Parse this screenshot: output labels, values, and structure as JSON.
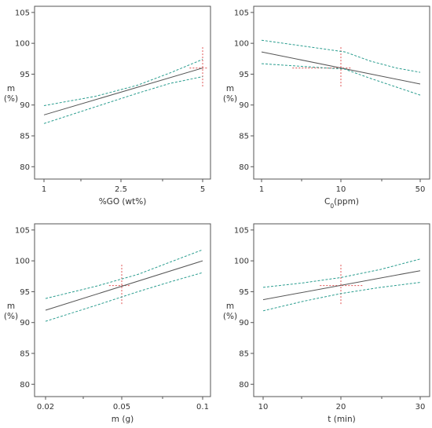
{
  "colors": {
    "fit_line": "#555555",
    "confidence_band": "#2a9d8f",
    "reference_cross": "#e05050",
    "frame": "#555555",
    "text": "#333333"
  },
  "chart_data": [
    {
      "type": "line",
      "xlabel": "%GO (wt%)",
      "ylabel_symbol": "m",
      "ylabel_unit": "(%)",
      "ylim": [
        78,
        106
      ],
      "yticks": [
        80,
        85,
        90,
        95,
        100,
        105
      ],
      "xlim": [
        1,
        5
      ],
      "xticks": [
        1,
        2.5,
        5
      ],
      "xtick_labels": [
        "1",
        "2.5",
        "5"
      ],
      "minor_xticks": [
        1.75,
        3.75
      ],
      "grid": false,
      "series": [
        {
          "role": "fit",
          "x": [
            1,
            5
          ],
          "y": [
            88.4,
            96.0
          ]
        },
        {
          "role": "upper",
          "x": [
            1,
            2,
            3,
            4,
            5
          ],
          "y": [
            89.9,
            91.4,
            93.2,
            95.2,
            97.4
          ]
        },
        {
          "role": "lower",
          "x": [
            1,
            2,
            3,
            4,
            5
          ],
          "y": [
            87.0,
            89.7,
            91.9,
            93.5,
            94.6
          ]
        }
      ],
      "reference_point": {
        "x": 5,
        "y": 96.0,
        "x_span": [
          4.6,
          5.15
        ],
        "y_span": [
          93.0,
          99.5
        ]
      }
    },
    {
      "type": "line",
      "xlabel": "C0(ppm)",
      "xlabel_main": "C",
      "xlabel_sub": "0",
      "xlabel_rest": "(ppm)",
      "ylabel_symbol": "m",
      "ylabel_unit": "(%)",
      "ylim": [
        78,
        106
      ],
      "yticks": [
        80,
        85,
        90,
        95,
        100,
        105
      ],
      "xlim": [
        1,
        50
      ],
      "xticks": [
        1,
        10,
        50
      ],
      "xtick_labels": [
        "1",
        "10",
        "50"
      ],
      "minor_xticks": [
        5.5,
        30
      ],
      "grid": false,
      "series": [
        {
          "role": "fit",
          "x": [
            1,
            50
          ],
          "y": [
            98.6,
            93.4
          ]
        },
        {
          "role": "upper",
          "x": [
            1,
            12,
            25,
            38,
            50
          ],
          "y": [
            100.5,
            98.6,
            97.1,
            96.0,
            95.3
          ]
        },
        {
          "role": "lower",
          "x": [
            1,
            12,
            25,
            38,
            50
          ],
          "y": [
            96.7,
            95.8,
            94.3,
            92.9,
            91.6
          ]
        }
      ],
      "reference_point": {
        "x": 10,
        "y": 96.0,
        "x_span": [
          4.5,
          15.5
        ],
        "y_span": [
          93.0,
          99.5
        ]
      }
    },
    {
      "type": "line",
      "xlabel": "m (g)",
      "ylabel_symbol": "m",
      "ylabel_unit": "(%)",
      "ylim": [
        78,
        106
      ],
      "yticks": [
        80,
        85,
        90,
        95,
        100,
        105
      ],
      "xlim": [
        0.02,
        0.1
      ],
      "xticks": [
        0.02,
        0.05,
        0.1
      ],
      "xtick_labels": [
        "0.02",
        "0.05",
        "0.1"
      ],
      "minor_xticks": [
        0.035,
        0.075
      ],
      "grid": false,
      "series": [
        {
          "role": "fit",
          "x": [
            0.02,
            0.1
          ],
          "y": [
            92.0,
            100.0
          ]
        },
        {
          "role": "upper",
          "x": [
            0.02,
            0.04,
            0.06,
            0.08,
            0.1
          ],
          "y": [
            93.9,
            95.9,
            97.8,
            99.8,
            101.8
          ]
        },
        {
          "role": "lower",
          "x": [
            0.02,
            0.04,
            0.06,
            0.08,
            0.1
          ],
          "y": [
            90.2,
            92.8,
            95.0,
            96.6,
            98.1
          ]
        }
      ],
      "reference_point": {
        "x": 0.05,
        "y": 96.0,
        "x_span": [
          0.045,
          0.055
        ],
        "y_span": [
          93.0,
          99.5
        ]
      }
    },
    {
      "type": "line",
      "xlabel": "t (min)",
      "ylabel_symbol": "m",
      "ylabel_unit": "(%)",
      "ylim": [
        78,
        106
      ],
      "yticks": [
        80,
        85,
        90,
        95,
        100,
        105
      ],
      "xlim": [
        10,
        30
      ],
      "xticks": [
        10,
        20,
        30
      ],
      "xtick_labels": [
        "10",
        "20",
        "30"
      ],
      "minor_xticks": [
        15,
        25
      ],
      "grid": false,
      "series": [
        {
          "role": "fit",
          "x": [
            10,
            30
          ],
          "y": [
            93.7,
            98.4
          ]
        },
        {
          "role": "upper",
          "x": [
            10,
            15,
            20,
            25,
            30
          ],
          "y": [
            95.7,
            96.4,
            97.3,
            98.6,
            100.3
          ]
        },
        {
          "role": "lower",
          "x": [
            10,
            15,
            20,
            25,
            30
          ],
          "y": [
            91.9,
            93.4,
            94.7,
            95.7,
            96.5
          ]
        }
      ],
      "reference_point": {
        "x": 20,
        "y": 96.0,
        "x_span": [
          17.3,
          22.7
        ],
        "y_span": [
          93.0,
          99.5
        ]
      }
    }
  ]
}
